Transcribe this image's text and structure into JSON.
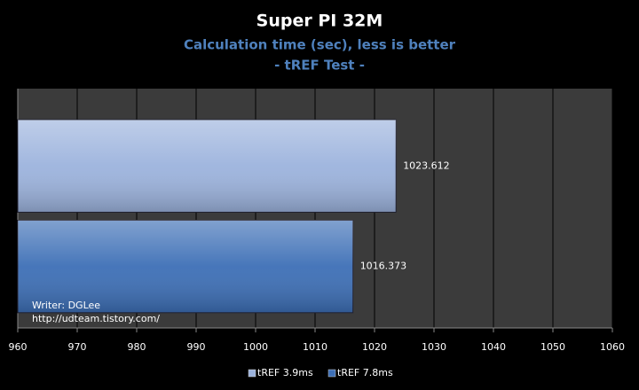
{
  "chart_data": {
    "type": "bar",
    "orientation": "horizontal",
    "title": "Super PI 32M",
    "subtitle": "Calculation time (sec), less is better",
    "subtitle2": "- tREF Test -",
    "categories": [
      null
    ],
    "series": [
      {
        "name": "tREF 3.9ms",
        "color": "#9cb3dd",
        "values": [
          1023.612
        ]
      },
      {
        "name": "tREF 7.8ms",
        "color": "#3d6fb6",
        "values": [
          1016.373
        ]
      }
    ],
    "xlim": [
      960,
      1060
    ],
    "xticks": [
      960,
      970,
      980,
      990,
      1000,
      1010,
      1020,
      1030,
      1040,
      1050,
      1060
    ],
    "grid": true,
    "legend": "bottom",
    "annotations": [
      "Writer: DGLee",
      "http://udteam.tistory.com/"
    ]
  }
}
